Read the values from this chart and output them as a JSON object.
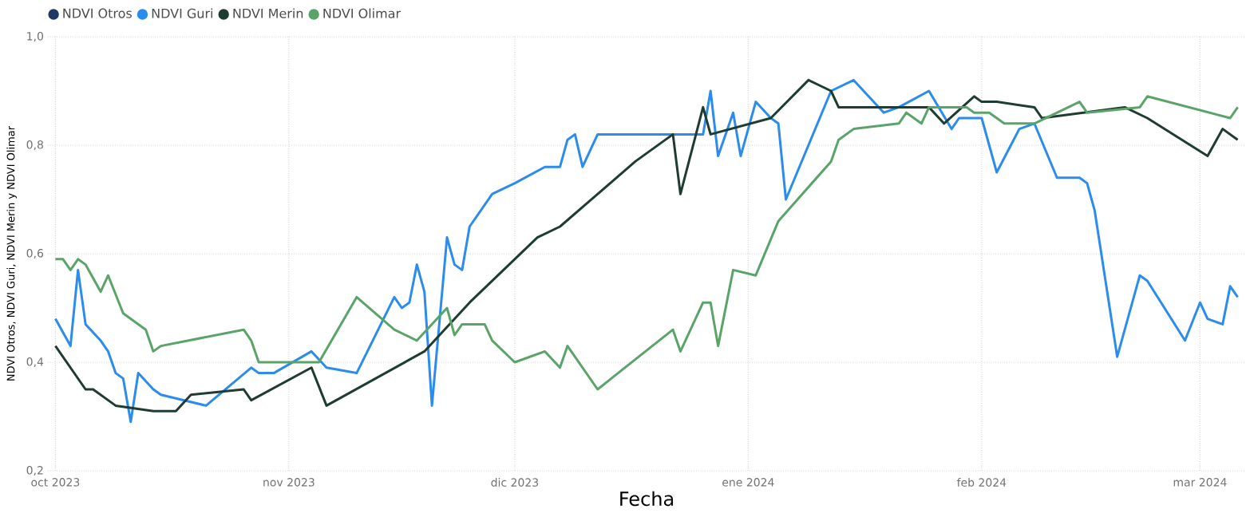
{
  "chart_data": {
    "type": "line",
    "xlabel": "Fecha",
    "ylabel": "NDVI Otros, NDVI Guri, NDVI Merin y NDVI Olimar",
    "xlim": [
      "2023-09-30",
      "2024-03-07"
    ],
    "xticks": [
      {
        "value": "2023-10-01",
        "label": "oct 2023"
      },
      {
        "value": "2023-11-01",
        "label": "nov 2023"
      },
      {
        "value": "2023-12-01",
        "label": "dic 2023"
      },
      {
        "value": "2024-01-01",
        "label": "ene 2024"
      },
      {
        "value": "2024-02-01",
        "label": "feb 2024"
      },
      {
        "value": "2024-03-01",
        "label": "mar 2024"
      }
    ],
    "ylim": [
      0.2,
      1.0
    ],
    "yticks": [
      {
        "value": 0.2,
        "label": "0,2"
      },
      {
        "value": 0.4,
        "label": "0,4"
      },
      {
        "value": 0.6,
        "label": "0,6"
      },
      {
        "value": 0.8,
        "label": "0,8"
      },
      {
        "value": 1.0,
        "label": "1,0"
      }
    ],
    "grid": true,
    "legend": "top left",
    "series": [
      {
        "name": "NDVI Otros",
        "color": "#1f3864"
      },
      {
        "name": "NDVI Guri",
        "color": "#2b8cee",
        "x": [
          "2023-10-01",
          "2023-10-03",
          "2023-10-04",
          "2023-10-05",
          "2023-10-07",
          "2023-10-08",
          "2023-10-09",
          "2023-10-10",
          "2023-10-11",
          "2023-10-12",
          "2023-10-14",
          "2023-10-15",
          "2023-10-21",
          "2023-10-27",
          "2023-10-28",
          "2023-10-30",
          "2023-11-04",
          "2023-11-06",
          "2023-11-10",
          "2023-11-15",
          "2023-11-16",
          "2023-11-17",
          "2023-11-18",
          "2023-11-19",
          "2023-11-20",
          "2023-11-22",
          "2023-11-23",
          "2023-11-24",
          "2023-11-25",
          "2023-11-28",
          "2023-12-01",
          "2023-12-05",
          "2023-12-07",
          "2023-12-08",
          "2023-12-09",
          "2023-12-10",
          "2023-12-12",
          "2023-12-22",
          "2023-12-26",
          "2023-12-27",
          "2023-12-28",
          "2023-12-30",
          "2023-12-31",
          "2024-01-02",
          "2024-01-04",
          "2024-01-05",
          "2024-01-06",
          "2024-01-12",
          "2024-01-15",
          "2024-01-19",
          "2024-01-21",
          "2024-01-25",
          "2024-01-28",
          "2024-01-29",
          "2024-02-01",
          "2024-02-03",
          "2024-02-06",
          "2024-02-08",
          "2024-02-11",
          "2024-02-14",
          "2024-02-15",
          "2024-02-16",
          "2024-02-19",
          "2024-02-22",
          "2024-02-23",
          "2024-02-28",
          "2024-03-01",
          "2024-03-02",
          "2024-03-04",
          "2024-03-05",
          "2024-03-06"
        ],
        "values": [
          0.48,
          0.43,
          0.57,
          0.47,
          0.44,
          0.42,
          0.38,
          0.37,
          0.29,
          0.38,
          0.35,
          0.34,
          0.32,
          0.39,
          0.38,
          0.38,
          0.42,
          0.39,
          0.38,
          0.52,
          0.5,
          0.51,
          0.58,
          0.53,
          0.32,
          0.63,
          0.58,
          0.57,
          0.65,
          0.71,
          0.73,
          0.76,
          0.76,
          0.81,
          0.82,
          0.76,
          0.82,
          0.82,
          0.82,
          0.9,
          0.78,
          0.86,
          0.78,
          0.88,
          0.85,
          0.84,
          0.7,
          0.9,
          0.92,
          0.86,
          0.87,
          0.9,
          0.83,
          0.85,
          0.85,
          0.75,
          0.83,
          0.84,
          0.74,
          0.74,
          0.73,
          0.68,
          0.41,
          0.56,
          0.55,
          0.44,
          0.51,
          0.48,
          0.47,
          0.54,
          0.52
        ]
      },
      {
        "name": "NDVI Merin",
        "color": "#1e3d30",
        "x": [
          "2023-10-01",
          "2023-10-05",
          "2023-10-06",
          "2023-10-09",
          "2023-10-14",
          "2023-10-17",
          "2023-10-19",
          "2023-10-26",
          "2023-10-27",
          "2023-11-04",
          "2023-11-06",
          "2023-11-19",
          "2023-11-25",
          "2023-12-04",
          "2023-12-07",
          "2023-12-17",
          "2023-12-22",
          "2023-12-23",
          "2023-12-26",
          "2023-12-27",
          "2024-01-04",
          "2024-01-09",
          "2024-01-12",
          "2024-01-13",
          "2024-01-20",
          "2024-01-25",
          "2024-01-27",
          "2024-01-31",
          "2024-02-01",
          "2024-02-02",
          "2024-02-03",
          "2024-02-08",
          "2024-02-09",
          "2024-02-20",
          "2024-02-23",
          "2024-03-02",
          "2024-03-04",
          "2024-03-06"
        ],
        "values": [
          0.43,
          0.35,
          0.35,
          0.32,
          0.31,
          0.31,
          0.34,
          0.35,
          0.33,
          0.39,
          0.32,
          0.42,
          0.51,
          0.63,
          0.65,
          0.77,
          0.82,
          0.71,
          0.87,
          0.82,
          0.85,
          0.92,
          0.9,
          0.87,
          0.87,
          0.87,
          0.84,
          0.89,
          0.88,
          0.88,
          0.88,
          0.87,
          0.85,
          0.87,
          0.85,
          0.78,
          0.83,
          0.81
        ]
      },
      {
        "name": "NDVI Olimar",
        "color": "#5aa469",
        "x": [
          "2023-10-01",
          "2023-10-02",
          "2023-10-03",
          "2023-10-04",
          "2023-10-05",
          "2023-10-07",
          "2023-10-08",
          "2023-10-10",
          "2023-10-12",
          "2023-10-13",
          "2023-10-14",
          "2023-10-15",
          "2023-10-26",
          "2023-10-27",
          "2023-10-28",
          "2023-11-05",
          "2023-11-10",
          "2023-11-15",
          "2023-11-18",
          "2023-11-22",
          "2023-11-23",
          "2023-11-24",
          "2023-11-25",
          "2023-11-27",
          "2023-11-28",
          "2023-12-01",
          "2023-12-05",
          "2023-12-07",
          "2023-12-08",
          "2023-12-12",
          "2023-12-22",
          "2023-12-23",
          "2023-12-26",
          "2023-12-27",
          "2023-12-28",
          "2023-12-30",
          "2024-01-02",
          "2024-01-05",
          "2024-01-12",
          "2024-01-13",
          "2024-01-15",
          "2024-01-21",
          "2024-01-22",
          "2024-01-23",
          "2024-01-24",
          "2024-01-25",
          "2024-01-28",
          "2024-01-30",
          "2024-01-31",
          "2024-02-02",
          "2024-02-04",
          "2024-02-08",
          "2024-02-14",
          "2024-02-15",
          "2024-02-22",
          "2024-02-23",
          "2024-03-05",
          "2024-03-06"
        ],
        "values": [
          0.59,
          0.59,
          0.57,
          0.59,
          0.58,
          0.53,
          0.56,
          0.49,
          0.47,
          0.46,
          0.42,
          0.43,
          0.46,
          0.44,
          0.4,
          0.4,
          0.52,
          0.46,
          0.44,
          0.5,
          0.45,
          0.47,
          0.47,
          0.47,
          0.44,
          0.4,
          0.42,
          0.39,
          0.43,
          0.35,
          0.46,
          0.42,
          0.51,
          0.51,
          0.43,
          0.57,
          0.56,
          0.66,
          0.77,
          0.81,
          0.83,
          0.84,
          0.86,
          0.85,
          0.84,
          0.87,
          0.87,
          0.87,
          0.86,
          0.86,
          0.84,
          0.84,
          0.88,
          0.86,
          0.87,
          0.89,
          0.85,
          0.87
        ]
      }
    ]
  }
}
